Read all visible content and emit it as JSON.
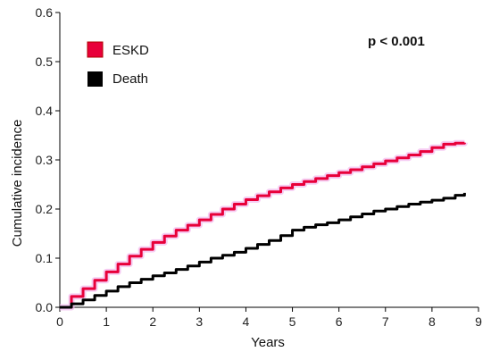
{
  "chart_data": {
    "type": "line",
    "title": "",
    "xlabel": "Years",
    "ylabel": "Cumulative incidence",
    "xlim": [
      0,
      9
    ],
    "ylim": [
      0,
      0.6
    ],
    "xticks": [
      0,
      1,
      2,
      3,
      4,
      5,
      6,
      7,
      8,
      9
    ],
    "yticks": [
      0.0,
      0.1,
      0.2,
      0.3,
      0.4,
      0.5,
      0.6
    ],
    "ytick_labels": [
      "0.0",
      "0.1",
      "0.2",
      "0.3",
      "0.4",
      "0.5",
      "0.6"
    ],
    "grid": false,
    "legend_position": "top-left",
    "annotation": "p < 0.001",
    "series": [
      {
        "name": "ESKD",
        "color": "#e8003a",
        "x": [
          0,
          0.25,
          0.5,
          0.75,
          1,
          1.25,
          1.5,
          1.75,
          2,
          2.25,
          2.5,
          2.75,
          3,
          3.25,
          3.5,
          3.75,
          4,
          4.25,
          4.5,
          4.75,
          5,
          5.25,
          5.5,
          5.75,
          6,
          6.25,
          6.5,
          6.75,
          7,
          7.25,
          7.5,
          7.75,
          8,
          8.25,
          8.5,
          8.7
        ],
        "y": [
          0,
          0.022,
          0.038,
          0.055,
          0.072,
          0.088,
          0.104,
          0.118,
          0.132,
          0.145,
          0.157,
          0.167,
          0.178,
          0.189,
          0.2,
          0.21,
          0.219,
          0.227,
          0.235,
          0.243,
          0.25,
          0.256,
          0.262,
          0.268,
          0.274,
          0.28,
          0.286,
          0.292,
          0.298,
          0.304,
          0.31,
          0.317,
          0.325,
          0.332,
          0.334,
          0.335
        ]
      },
      {
        "name": "Death",
        "color": "#000000",
        "x": [
          0,
          0.25,
          0.5,
          0.75,
          1,
          1.25,
          1.5,
          1.75,
          2,
          2.25,
          2.5,
          2.75,
          3,
          3.25,
          3.5,
          3.75,
          4,
          4.25,
          4.5,
          4.75,
          5,
          5.25,
          5.5,
          5.75,
          6,
          6.25,
          6.5,
          6.75,
          7,
          7.25,
          7.5,
          7.75,
          8,
          8.25,
          8.5,
          8.7
        ],
        "y": [
          0,
          0.007,
          0.015,
          0.024,
          0.033,
          0.042,
          0.05,
          0.057,
          0.064,
          0.07,
          0.077,
          0.084,
          0.092,
          0.1,
          0.106,
          0.112,
          0.12,
          0.128,
          0.136,
          0.146,
          0.157,
          0.163,
          0.168,
          0.172,
          0.178,
          0.184,
          0.19,
          0.196,
          0.2,
          0.205,
          0.21,
          0.214,
          0.218,
          0.222,
          0.228,
          0.233
        ]
      }
    ]
  }
}
